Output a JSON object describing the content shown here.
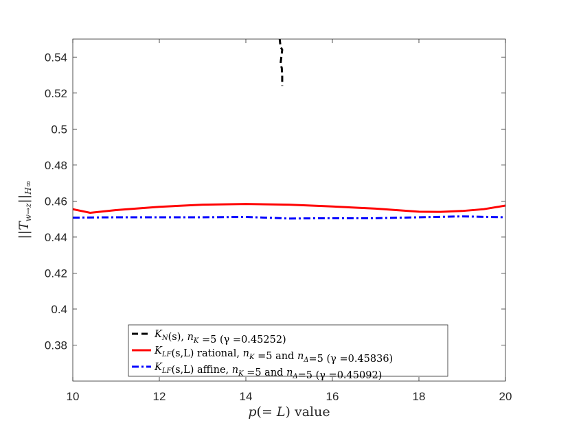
{
  "chart_data": {
    "type": "line",
    "title": "",
    "xlabel": "p(= L) value",
    "ylabel": "||T_{w→z}||_{H∞}",
    "xlim": [
      10,
      20
    ],
    "ylim": [
      0.36,
      0.55
    ],
    "xticks": [
      "10",
      "12",
      "14",
      "16",
      "18",
      "20"
    ],
    "yticks": [
      "0.38",
      "0.4",
      "0.42",
      "0.44",
      "0.46",
      "0.48",
      "0.5",
      "0.52",
      "0.54"
    ],
    "grid": false,
    "legend_position": "bottom-center",
    "series": [
      {
        "name": "K_N(s), n_K =5 (γ =0.45252)",
        "legend_label": "K_N(s), n_K =5 (γ =0.45252)",
        "color": "#000000",
        "style": "dashed",
        "points": [
          [
            14.78,
            0.5505
          ],
          [
            14.8,
            0.546
          ],
          [
            14.84,
            0.544
          ],
          [
            14.82,
            0.54
          ],
          [
            14.8,
            0.536
          ],
          [
            14.83,
            0.534
          ],
          [
            14.84,
            0.53
          ],
          [
            14.84,
            0.524
          ]
        ]
      },
      {
        "name": "K_LF(s,L) rational, n_K =5 and n_Δ=5 (γ =0.45836)",
        "legend_label": "K_LF(s,L) rational, n_K =5 and n_Δ=5 (γ =0.45836)",
        "color": "#ff0000",
        "style": "solid",
        "points": [
          [
            10,
            0.4555
          ],
          [
            10.4,
            0.4535
          ],
          [
            11,
            0.455
          ],
          [
            12,
            0.4568
          ],
          [
            13,
            0.458
          ],
          [
            14,
            0.4584
          ],
          [
            15,
            0.458
          ],
          [
            16,
            0.457
          ],
          [
            17,
            0.4558
          ],
          [
            18,
            0.4541
          ],
          [
            18.5,
            0.454
          ],
          [
            19,
            0.4545
          ],
          [
            19.5,
            0.4555
          ],
          [
            20,
            0.4575
          ]
        ]
      },
      {
        "name": "K_LF(s,L) affine, n_K =5 and n_Δ=5 (γ =0.45092)",
        "legend_label": "K_LF(s,L) affine, n_K =5 and n_Δ=5 (γ =0.45092)",
        "color": "#0000ff",
        "style": "dashdot",
        "points": [
          [
            10,
            0.4508
          ],
          [
            11,
            0.451
          ],
          [
            12,
            0.451
          ],
          [
            13,
            0.451
          ],
          [
            14,
            0.4512
          ],
          [
            15,
            0.4503
          ],
          [
            16,
            0.4505
          ],
          [
            17,
            0.4505
          ],
          [
            18,
            0.451
          ],
          [
            19,
            0.4515
          ],
          [
            20,
            0.451
          ]
        ]
      }
    ]
  }
}
